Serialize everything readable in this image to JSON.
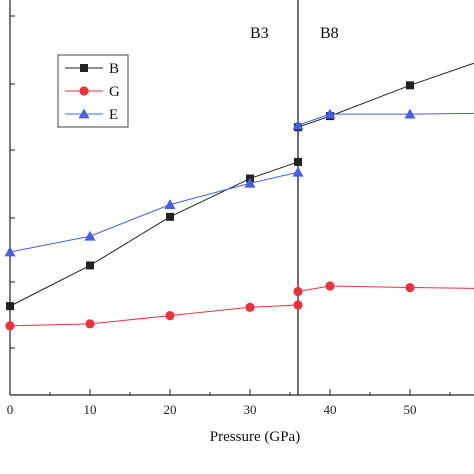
{
  "chart_data": {
    "type": "line",
    "xlabel": "Pressure (GPa)",
    "xlim": [
      0,
      58
    ],
    "ylim": [
      0,
      100
    ],
    "x_ticks": [
      0,
      10,
      20,
      30,
      40,
      50
    ],
    "x_tick_labels": [
      "0",
      "10",
      "20",
      "30",
      "40",
      "50"
    ],
    "transition_pressure": 36,
    "phase_labels": [
      "B3",
      "B8"
    ],
    "legend": {
      "position": "top-left"
    },
    "series": [
      {
        "name": "B",
        "color": "#222222",
        "marker": "square",
        "segments": [
          {
            "x": [
              0,
              10,
              20,
              30,
              36
            ],
            "y": [
              22.5,
              32.8,
              45.1,
              54.8,
              59.0
            ]
          },
          {
            "x": [
              36,
              40,
              50,
              58
            ],
            "y": [
              67.8,
              70.6,
              78.4,
              84.0
            ]
          }
        ]
      },
      {
        "name": "G",
        "color": "#e8333f",
        "marker": "circle",
        "segments": [
          {
            "x": [
              0,
              10,
              20,
              30,
              36
            ],
            "y": [
              17.5,
              18.0,
              20.1,
              22.2,
              22.8
            ]
          },
          {
            "x": [
              36,
              40,
              50,
              58
            ],
            "y": [
              26.2,
              27.6,
              27.2,
              27.0
            ]
          }
        ]
      },
      {
        "name": "E",
        "color": "#4a5ee0",
        "marker": "triangle",
        "segments": [
          {
            "x": [
              0,
              10,
              20,
              30,
              36
            ],
            "y": [
              36.2,
              40.2,
              48.2,
              53.6,
              56.4
            ]
          },
          {
            "x": [
              36,
              40,
              50,
              58
            ],
            "y": [
              68.3,
              71.1,
              71.1,
              71.3
            ]
          }
        ]
      }
    ]
  }
}
